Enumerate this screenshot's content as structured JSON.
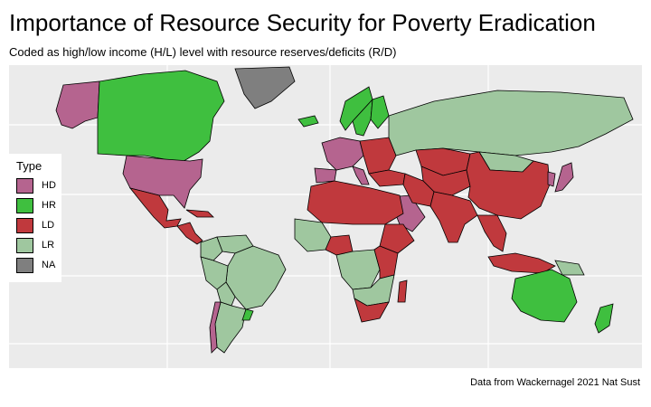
{
  "title": "Importance of Resource Security for Poverty Eradication",
  "subtitle": "Coded as high/low income (H/L) level with resource reserves/deficits (R/D)",
  "caption": "Data from Wackernagel 2021 Nat Sust",
  "legend": {
    "title": "Type",
    "items": [
      {
        "label": "HD",
        "color": "#b5648f"
      },
      {
        "label": "HR",
        "color": "#3fbf3f"
      },
      {
        "label": "LD",
        "color": "#c0393d"
      },
      {
        "label": "LR",
        "color": "#9fc79f"
      },
      {
        "label": "NA",
        "color": "#7f7f7f"
      }
    ]
  },
  "map": {
    "projection": "mercator",
    "background_color": "#ebebeb",
    "gridlines": true,
    "regions": [
      {
        "region": "Alaska",
        "type": "HD"
      },
      {
        "region": "Canada",
        "type": "HR"
      },
      {
        "region": "Greenland",
        "type": "NA"
      },
      {
        "region": "United States",
        "type": "HD"
      },
      {
        "region": "Mexico",
        "type": "LD"
      },
      {
        "region": "Central America",
        "type": "LD"
      },
      {
        "region": "Cuba",
        "type": "LD"
      },
      {
        "region": "Colombia",
        "type": "LR"
      },
      {
        "region": "Venezuela",
        "type": "LR"
      },
      {
        "region": "Brazil",
        "type": "LR"
      },
      {
        "region": "Peru",
        "type": "LR"
      },
      {
        "region": "Bolivia",
        "type": "LR"
      },
      {
        "region": "Argentina",
        "type": "LR"
      },
      {
        "region": "Chile",
        "type": "HD"
      },
      {
        "region": "Uruguay",
        "type": "HR"
      },
      {
        "region": "Iceland",
        "type": "HR"
      },
      {
        "region": "Norway",
        "type": "HR"
      },
      {
        "region": "Sweden",
        "type": "HR"
      },
      {
        "region": "Finland",
        "type": "HR"
      },
      {
        "region": "Western Europe",
        "type": "HD"
      },
      {
        "region": "Spain",
        "type": "HD"
      },
      {
        "region": "Italy",
        "type": "HD"
      },
      {
        "region": "Eastern Europe",
        "type": "LD"
      },
      {
        "region": "Russia",
        "type": "LR"
      },
      {
        "region": "Kazakhstan",
        "type": "LD"
      },
      {
        "region": "Central Asia",
        "type": "LD"
      },
      {
        "region": "Mongolia",
        "type": "LR"
      },
      {
        "region": "China",
        "type": "LD"
      },
      {
        "region": "Japan",
        "type": "HD"
      },
      {
        "region": "Korea",
        "type": "HD"
      },
      {
        "region": "Turkey",
        "type": "LD"
      },
      {
        "region": "Saudi Arabia",
        "type": "HD"
      },
      {
        "region": "Iran",
        "type": "LD"
      },
      {
        "region": "India",
        "type": "LD"
      },
      {
        "region": "Southeast Asia",
        "type": "LD"
      },
      {
        "region": "Indonesia",
        "type": "LD"
      },
      {
        "region": "Papua New Guinea",
        "type": "LR"
      },
      {
        "region": "North Africa",
        "type": "LD"
      },
      {
        "region": "West Africa",
        "type": "LR"
      },
      {
        "region": "Nigeria",
        "type": "LD"
      },
      {
        "region": "Central Africa",
        "type": "LR"
      },
      {
        "region": "Ethiopia",
        "type": "LD"
      },
      {
        "region": "East Africa",
        "type": "LD"
      },
      {
        "region": "Southern Africa",
        "type": "LR"
      },
      {
        "region": "South Africa",
        "type": "LD"
      },
      {
        "region": "Madagascar",
        "type": "LD"
      },
      {
        "region": "Australia",
        "type": "HR"
      },
      {
        "region": "New Zealand",
        "type": "HR"
      }
    ]
  }
}
